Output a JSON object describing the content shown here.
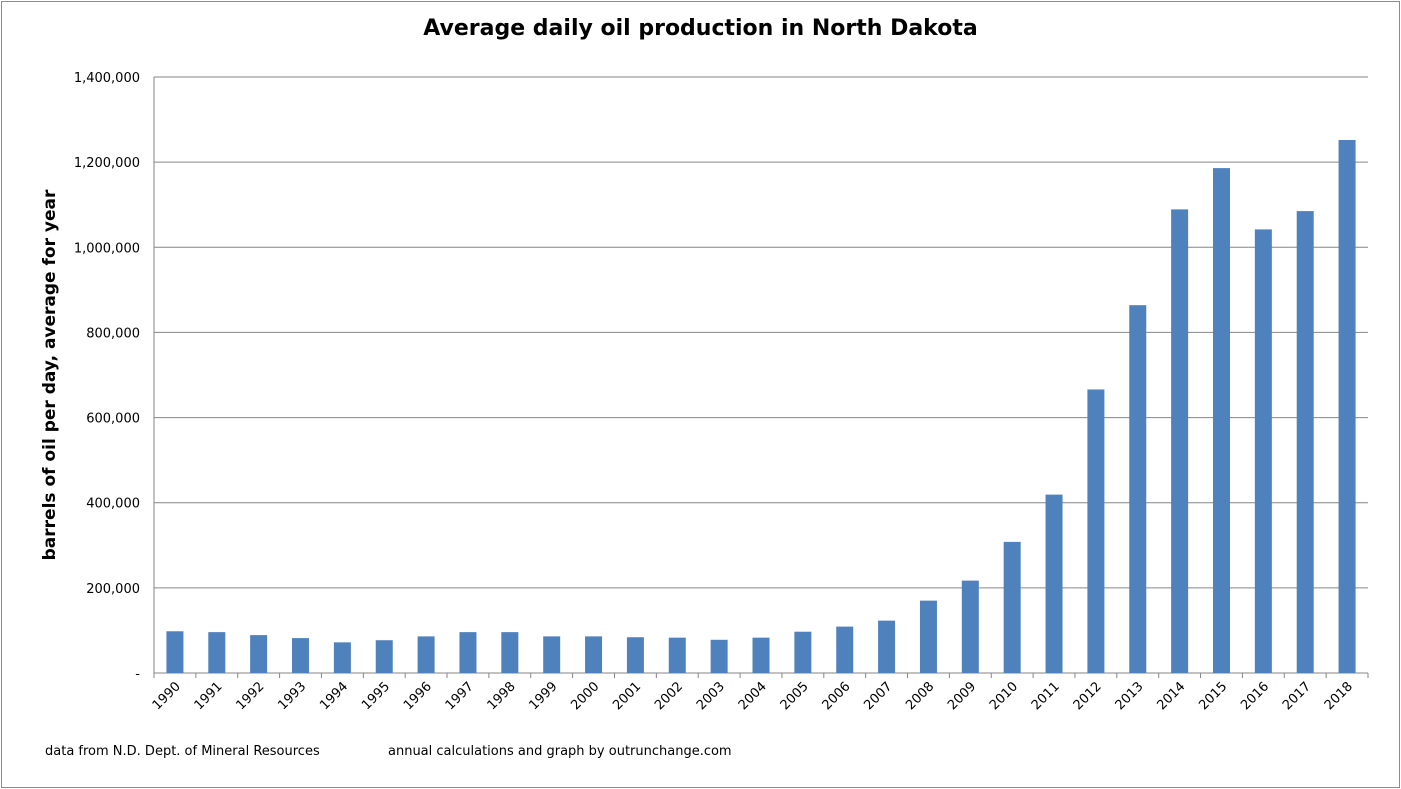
{
  "chart_data": {
    "type": "bar",
    "title": "Average daily oil production in North Dakota",
    "xlabel": "",
    "ylabel": "barrels of oil per day, average for year",
    "ylim": [
      0,
      1400000
    ],
    "yticks": [
      0,
      200000,
      400000,
      600000,
      800000,
      1000000,
      1200000,
      1400000
    ],
    "ytick_labels": [
      "-",
      "200,000",
      "400,000",
      "600,000",
      "800,000",
      "1,000,000",
      "1,200,000",
      "1,400,000"
    ],
    "grid": true,
    "color": "#4f81bd",
    "categories": [
      "1990",
      "1991",
      "1992",
      "1993",
      "1994",
      "1995",
      "1996",
      "1997",
      "1998",
      "1999",
      "2000",
      "2001",
      "2002",
      "2003",
      "2004",
      "2005",
      "2006",
      "2007",
      "2008",
      "2009",
      "2010",
      "2011",
      "2012",
      "2013",
      "2014",
      "2015",
      "2016",
      "2017",
      "2018"
    ],
    "values": [
      98000,
      96000,
      89000,
      82000,
      72000,
      77000,
      86000,
      96000,
      96000,
      86000,
      86000,
      84000,
      83000,
      78000,
      83000,
      97000,
      109000,
      123000,
      170000,
      217000,
      308000,
      419000,
      666000,
      864000,
      1089000,
      1186000,
      1042000,
      1085000,
      1252000
    ]
  },
  "footer": {
    "source": "data from N.D. Dept. of Mineral Resources",
    "credit": "annual calculations and graph by outrunchange.com"
  }
}
